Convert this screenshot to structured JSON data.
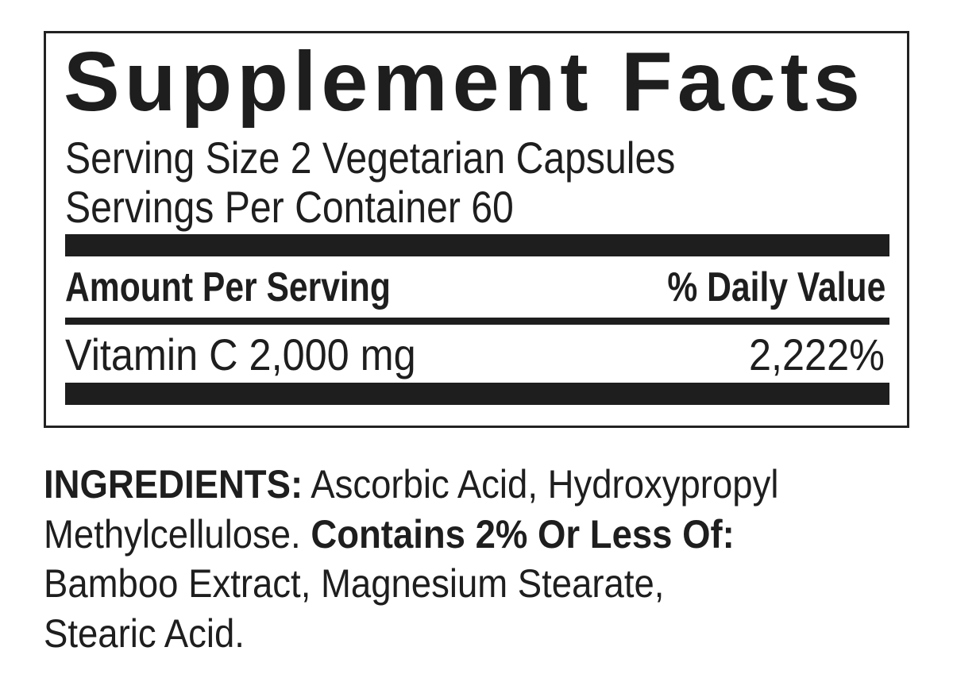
{
  "facts": {
    "title": "Supplement Facts",
    "serving_size": "Serving Size 2 Vegetarian Capsules",
    "servings_per_container": "Servings Per Container 60",
    "amount_header": "Amount Per Serving",
    "daily_value_header": "% Daily Value",
    "rows": [
      {
        "nutrient": "Vitamin C 2,000 mg",
        "daily_value": "2,222%"
      }
    ]
  },
  "ingredients": {
    "label": "INGREDIENTS:",
    "main": " Ascorbic Acid, Hydroxypropyl",
    "main_cont": "Methylcellulose. ",
    "less_label": "Contains 2% Or Less Of:",
    "line3": "Bamboo Extract, Magnesium Stearate,",
    "line4": "Stearic Acid."
  }
}
